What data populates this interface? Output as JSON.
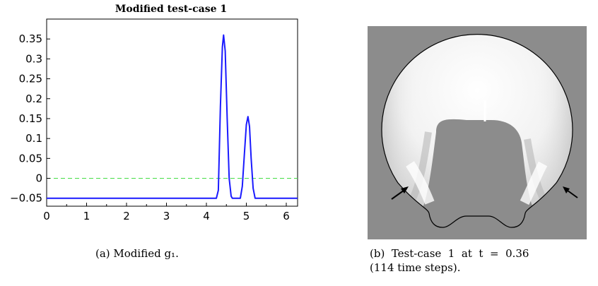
{
  "chart_data": {
    "type": "line",
    "title": "Modified test-case 1",
    "xlabel": "",
    "ylabel": "",
    "xlim": [
      0,
      6.2832
    ],
    "ylim": [
      -0.07,
      0.4
    ],
    "x_ticks": [
      "0",
      "1",
      "2",
      "3",
      "4",
      "5",
      "6"
    ],
    "y_ticks": [
      "-0.05",
      "0",
      "0.05",
      "0.1",
      "0.15",
      "0.2",
      "0.25",
      "0.3",
      "0.35"
    ],
    "baseline": 0,
    "baseline_color": "#44dd44",
    "series_color": "#1a1aff",
    "series": [
      {
        "values": [
          [
            0,
            -0.05
          ],
          [
            4.25,
            -0.05
          ],
          [
            4.3,
            -0.03
          ],
          [
            4.35,
            0.18
          ],
          [
            4.4,
            0.33
          ],
          [
            4.43,
            0.36
          ],
          [
            4.47,
            0.32
          ],
          [
            4.52,
            0.15
          ],
          [
            4.57,
            0.0
          ],
          [
            4.62,
            -0.045
          ],
          [
            4.65,
            -0.05
          ],
          [
            4.85,
            -0.05
          ],
          [
            4.9,
            -0.02
          ],
          [
            4.95,
            0.06
          ],
          [
            5.0,
            0.135
          ],
          [
            5.04,
            0.155
          ],
          [
            5.08,
            0.13
          ],
          [
            5.12,
            0.05
          ],
          [
            5.17,
            -0.025
          ],
          [
            5.22,
            -0.05
          ],
          [
            6.2832,
            -0.05
          ]
        ]
      }
    ]
  },
  "captions": {
    "a": "(a) Modified g₁.",
    "b_line1": "(b)  Test-case  1  at  t  =  0.36",
    "b_line2": "(114 time steps)."
  },
  "image_b": {
    "background": "#8c8c8c",
    "outline": "#000000",
    "arrow_count": 2
  }
}
